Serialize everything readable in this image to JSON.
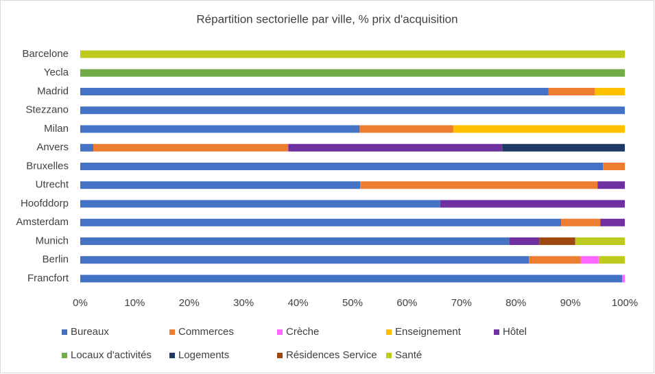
{
  "chart_data": {
    "type": "stacked-bar-horizontal",
    "title": "Répartition sectorielle par ville, % prix d'acquisition",
    "categories": [
      "Barcelone",
      "Yecla",
      "Madrid",
      "Stezzano",
      "Milan",
      "Anvers",
      "Bruxelles",
      "Utrecht",
      "Hoofddorp",
      "Amsterdam",
      "Munich",
      "Berlin",
      "Francfort"
    ],
    "series": [
      {
        "name": "Bureaux",
        "color": "#4472c4",
        "values": [
          0,
          0,
          86,
          100,
          51.3,
          2.4,
          96,
          51.4,
          66.1,
          88.3,
          78.8,
          82.4,
          99.5
        ]
      },
      {
        "name": "Commerces",
        "color": "#ed7d31",
        "values": [
          0,
          0,
          8.5,
          0,
          17.2,
          35.8,
          4,
          43.6,
          0,
          7.2,
          0,
          9.5,
          0
        ]
      },
      {
        "name": "Crèche",
        "color": "#ff66ff",
        "values": [
          0,
          0,
          0,
          0,
          0,
          0,
          0,
          0,
          0,
          0,
          0,
          3.3,
          0.5
        ]
      },
      {
        "name": "Enseignement",
        "color": "#ffc000",
        "values": [
          0,
          0,
          5.5,
          0,
          31.5,
          0,
          0,
          0,
          0,
          0,
          0,
          0,
          0
        ]
      },
      {
        "name": "Hôtel",
        "color": "#7030a0",
        "values": [
          0,
          0,
          0,
          0,
          0,
          39.3,
          0,
          5,
          33.9,
          4.5,
          5.5,
          0,
          0
        ]
      },
      {
        "name": "Locaux d'activités",
        "color": "#70ad47",
        "values": [
          0,
          100,
          0,
          0,
          0,
          0,
          0,
          0,
          0,
          0,
          0,
          0,
          0
        ]
      },
      {
        "name": "Logements",
        "color": "#203864",
        "values": [
          0,
          0,
          0,
          0,
          0,
          22.5,
          0,
          0,
          0,
          0,
          0,
          0,
          0
        ]
      },
      {
        "name": "Résidences Service",
        "color": "#9e480e",
        "values": [
          0,
          0,
          0,
          0,
          0,
          0,
          0,
          0,
          0,
          0,
          6.6,
          0,
          0
        ]
      },
      {
        "name": "Santé",
        "color": "#bfca1e",
        "values": [
          100,
          0,
          0,
          0,
          0,
          0,
          0,
          0,
          0,
          0,
          9.1,
          4.8,
          0
        ]
      }
    ],
    "xlim": [
      0,
      100
    ],
    "xticks": [
      {
        "value": 0,
        "label": "0%"
      },
      {
        "value": 10,
        "label": "10%"
      },
      {
        "value": 20,
        "label": "20%"
      },
      {
        "value": 30,
        "label": "30%"
      },
      {
        "value": 40,
        "label": "40%"
      },
      {
        "value": 50,
        "label": "50%"
      },
      {
        "value": 60,
        "label": "60%"
      },
      {
        "value": 70,
        "label": "70%"
      },
      {
        "value": 80,
        "label": "80%"
      },
      {
        "value": 90,
        "label": "90%"
      },
      {
        "value": 100,
        "label": "100%"
      }
    ],
    "grid": false,
    "legend": "bottom"
  }
}
